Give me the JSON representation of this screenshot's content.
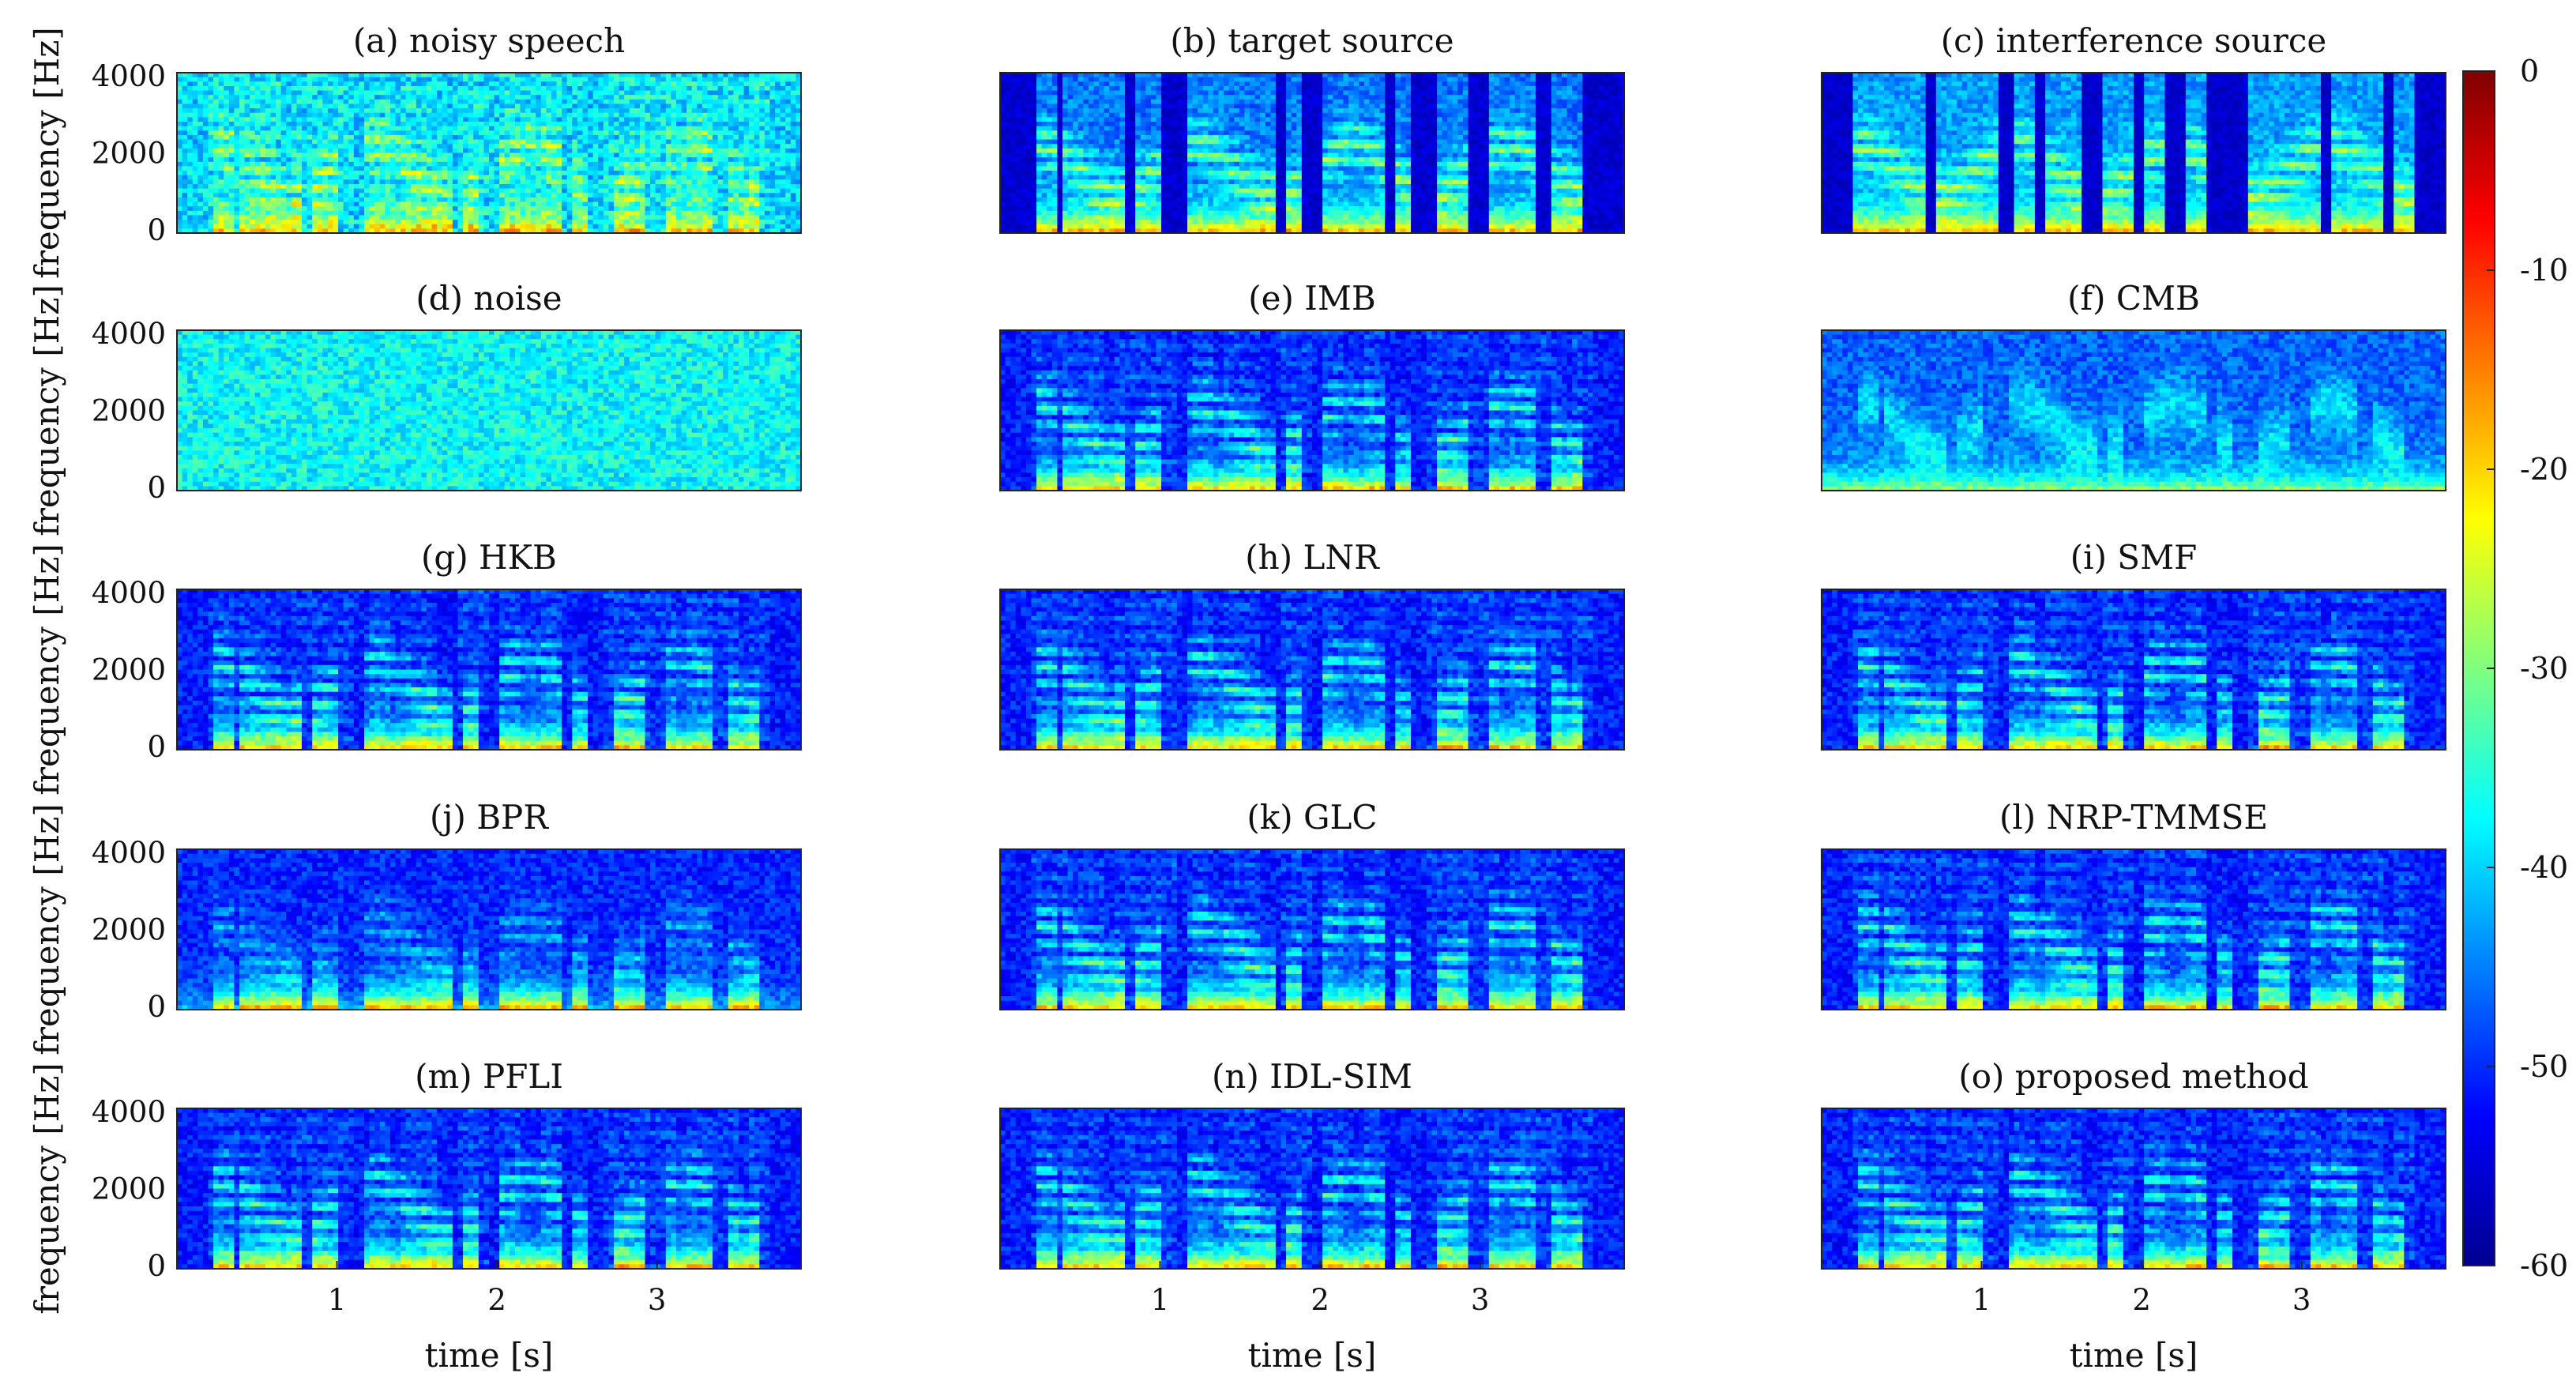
{
  "chart_data": {
    "type": "heatmap",
    "rows": 5,
    "cols": 3,
    "ylabel": "frequency [Hz]",
    "xlabel": "time [s]",
    "yticks": [
      "4000",
      "2000",
      "0"
    ],
    "ylim": [
      0,
      4000
    ],
    "xticks": [
      "1",
      "2",
      "3"
    ],
    "xlim": [
      0,
      3.9
    ],
    "colorbar": {
      "ticks": [
        "0",
        "-10",
        "-20",
        "-30",
        "-40",
        "-50",
        "-60"
      ],
      "range": [
        -60,
        0
      ],
      "colormap": "jet"
    },
    "panels": [
      {
        "title": "(a) noisy speech",
        "kind": "noisy",
        "level": 0.55
      },
      {
        "title": "(b) target source",
        "kind": "target",
        "level": 0.0
      },
      {
        "title": "(c) interference source",
        "kind": "interf",
        "level": 0.0
      },
      {
        "title": "(d) noise",
        "kind": "noise",
        "level": 0.6
      },
      {
        "title": "(e) IMB",
        "kind": "enh",
        "level": 0.3
      },
      {
        "title": "(f) CMB",
        "kind": "cmb",
        "level": 0.35
      },
      {
        "title": "(g) HKB",
        "kind": "enh",
        "level": 0.28
      },
      {
        "title": "(h) LNR",
        "kind": "enh",
        "level": 0.3
      },
      {
        "title": "(i) SMF",
        "kind": "enh",
        "level": 0.32
      },
      {
        "title": "(j) BPR",
        "kind": "bpr",
        "level": 0.3
      },
      {
        "title": "(k) GLC",
        "kind": "enh",
        "level": 0.32
      },
      {
        "title": "(l) NRP-TMMSE",
        "kind": "enh",
        "level": 0.32
      },
      {
        "title": "(m) PFLI",
        "kind": "enh",
        "level": 0.3
      },
      {
        "title": "(n) IDL-SIM",
        "kind": "enh",
        "level": 0.33
      },
      {
        "title": "(o) proposed method",
        "kind": "enh",
        "level": 0.3
      }
    ]
  }
}
